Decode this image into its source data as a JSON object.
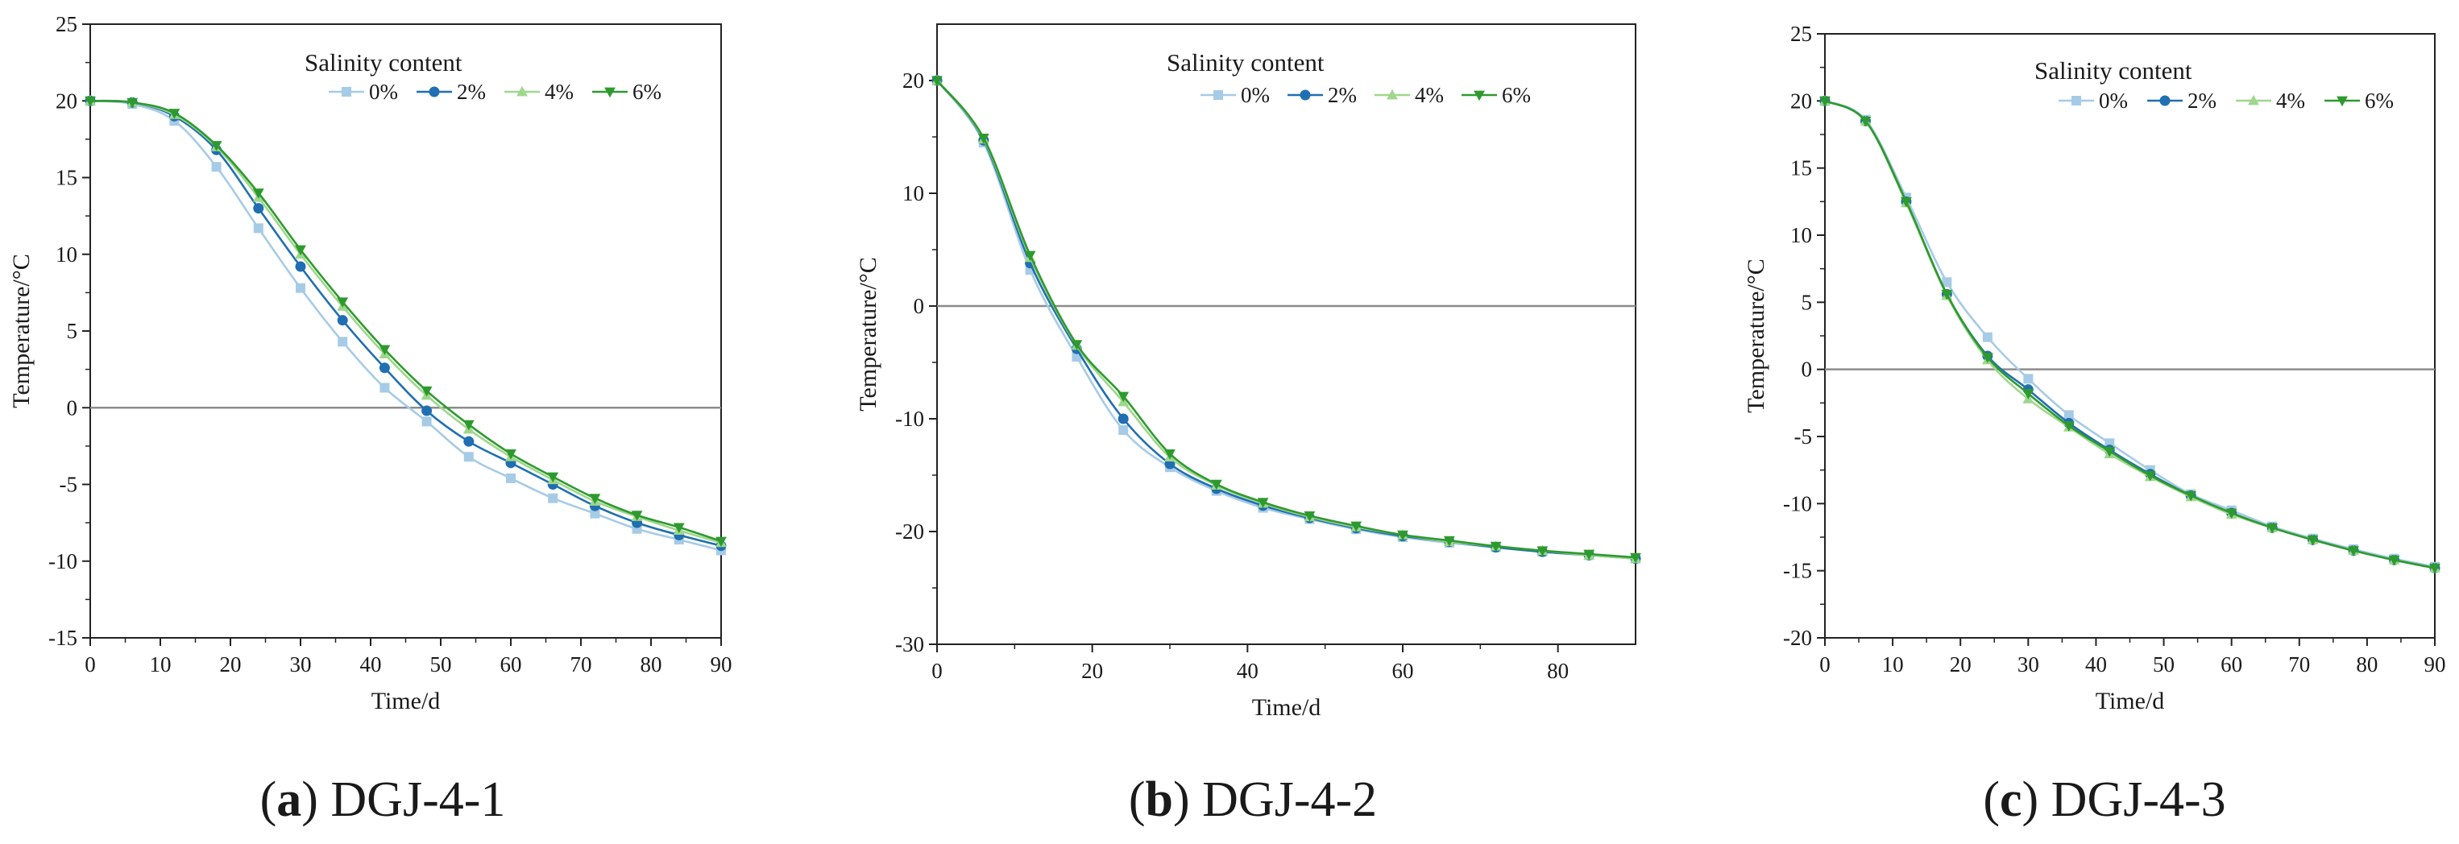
{
  "legend": {
    "title": "Salinity content",
    "series_colors": {
      "0%": "#a6cbe6",
      "2%": "#1f6fb2",
      "4%": "#9fd78d",
      "6%": "#2e9a2e"
    },
    "zero_line_color": "#8c8c8c"
  },
  "chart_data": [
    {
      "type": "line",
      "caption_letter": "a",
      "caption_name": "DGJ-4-1",
      "title": "",
      "xlabel": "Time/d",
      "ylabel": "Temperature/°C",
      "xlim": [
        0,
        90
      ],
      "ylim": [
        -15,
        25
      ],
      "xticks": [
        0,
        10,
        20,
        30,
        40,
        50,
        60,
        70,
        80,
        90
      ],
      "yticks": [
        -15,
        -10,
        -5,
        0,
        5,
        10,
        15,
        20,
        25
      ],
      "x": [
        0,
        6,
        12,
        18,
        24,
        30,
        36,
        42,
        48,
        54,
        60,
        66,
        72,
        78,
        84,
        90
      ],
      "series": [
        {
          "name": "0%",
          "marker": "square",
          "values": [
            20,
            19.8,
            18.7,
            15.7,
            11.7,
            7.8,
            4.3,
            1.3,
            -0.9,
            -3.2,
            -4.6,
            -5.9,
            -6.9,
            -7.9,
            -8.6,
            -9.3
          ]
        },
        {
          "name": "2%",
          "marker": "circle",
          "values": [
            20,
            19.9,
            19.0,
            16.8,
            13.0,
            9.2,
            5.7,
            2.6,
            -0.2,
            -2.2,
            -3.6,
            -5.0,
            -6.4,
            -7.5,
            -8.3,
            -9.0
          ]
        },
        {
          "name": "4%",
          "marker": "triangle-up",
          "values": [
            20,
            19.9,
            19.1,
            17.0,
            13.7,
            10.0,
            6.6,
            3.5,
            0.8,
            -1.4,
            -3.2,
            -4.7,
            -6.1,
            -7.1,
            -8.0,
            -8.8
          ]
        },
        {
          "name": "6%",
          "marker": "triangle-down",
          "values": [
            20,
            19.9,
            19.2,
            17.1,
            14.0,
            10.3,
            6.9,
            3.8,
            1.1,
            -1.1,
            -3.0,
            -4.5,
            -5.9,
            -7.0,
            -7.8,
            -8.7
          ]
        }
      ]
    },
    {
      "type": "line",
      "caption_letter": "b",
      "caption_name": "DGJ-4-2",
      "title": "",
      "xlabel": "Time/d",
      "ylabel": "Temperature/°C",
      "xlim": [
        0,
        90
      ],
      "ylim": [
        -30,
        25
      ],
      "xticks": [
        0,
        20,
        40,
        60,
        80
      ],
      "yticks": [
        -30,
        -20,
        -10,
        0,
        10,
        20
      ],
      "x": [
        0,
        6,
        12,
        18,
        24,
        30,
        36,
        42,
        48,
        54,
        60,
        66,
        72,
        78,
        84,
        90
      ],
      "series": [
        {
          "name": "0%",
          "marker": "square",
          "values": [
            20,
            14.5,
            3.2,
            -4.5,
            -11.0,
            -14.3,
            -16.4,
            -17.9,
            -18.9,
            -19.8,
            -20.5,
            -21.0,
            -21.4,
            -21.8,
            -22.1,
            -22.4
          ]
        },
        {
          "name": "2%",
          "marker": "circle",
          "values": [
            20,
            14.7,
            3.8,
            -3.8,
            -10.0,
            -14.0,
            -16.2,
            -17.7,
            -18.8,
            -19.7,
            -20.4,
            -20.9,
            -21.4,
            -21.8,
            -22.1,
            -22.4
          ]
        },
        {
          "name": "4%",
          "marker": "triangle-up",
          "values": [
            20,
            14.8,
            4.3,
            -3.5,
            -8.5,
            -13.4,
            -15.9,
            -17.5,
            -18.7,
            -19.6,
            -20.3,
            -20.9,
            -21.3,
            -21.7,
            -22.1,
            -22.4
          ]
        },
        {
          "name": "6%",
          "marker": "triangle-down",
          "values": [
            20,
            14.9,
            4.5,
            -3.4,
            -8.0,
            -13.1,
            -15.8,
            -17.4,
            -18.6,
            -19.5,
            -20.3,
            -20.8,
            -21.3,
            -21.7,
            -22.0,
            -22.3
          ]
        }
      ]
    },
    {
      "type": "line",
      "caption_letter": "c",
      "caption_name": "DGJ-4-3",
      "title": "",
      "xlabel": "Time/d",
      "ylabel": "Temperature/°C",
      "xlim": [
        0,
        90
      ],
      "ylim": [
        -20,
        25
      ],
      "xticks": [
        0,
        10,
        20,
        30,
        40,
        50,
        60,
        70,
        80,
        90
      ],
      "yticks": [
        -20,
        -15,
        -10,
        -5,
        0,
        5,
        10,
        15,
        20,
        25
      ],
      "x": [
        0,
        6,
        12,
        18,
        24,
        30,
        36,
        42,
        48,
        54,
        60,
        66,
        72,
        78,
        84,
        90
      ],
      "series": [
        {
          "name": "0%",
          "marker": "square",
          "values": [
            20,
            18.6,
            12.8,
            6.5,
            2.4,
            -0.7,
            -3.4,
            -5.5,
            -7.5,
            -9.3,
            -10.5,
            -11.7,
            -12.6,
            -13.4,
            -14.1,
            -14.7
          ]
        },
        {
          "name": "2%",
          "marker": "circle",
          "values": [
            20,
            18.5,
            12.5,
            5.6,
            1.0,
            -1.5,
            -4.0,
            -6.0,
            -7.8,
            -9.4,
            -10.7,
            -11.8,
            -12.7,
            -13.5,
            -14.2,
            -14.8
          ]
        },
        {
          "name": "4%",
          "marker": "triangle-up",
          "values": [
            20,
            18.5,
            12.4,
            5.5,
            0.7,
            -2.2,
            -4.3,
            -6.3,
            -8.0,
            -9.5,
            -10.8,
            -11.8,
            -12.7,
            -13.5,
            -14.2,
            -14.8
          ]
        },
        {
          "name": "6%",
          "marker": "triangle-down",
          "values": [
            20,
            18.5,
            12.5,
            5.6,
            0.9,
            -1.8,
            -4.2,
            -6.1,
            -7.9,
            -9.4,
            -10.7,
            -11.8,
            -12.7,
            -13.5,
            -14.2,
            -14.8
          ]
        }
      ]
    }
  ]
}
